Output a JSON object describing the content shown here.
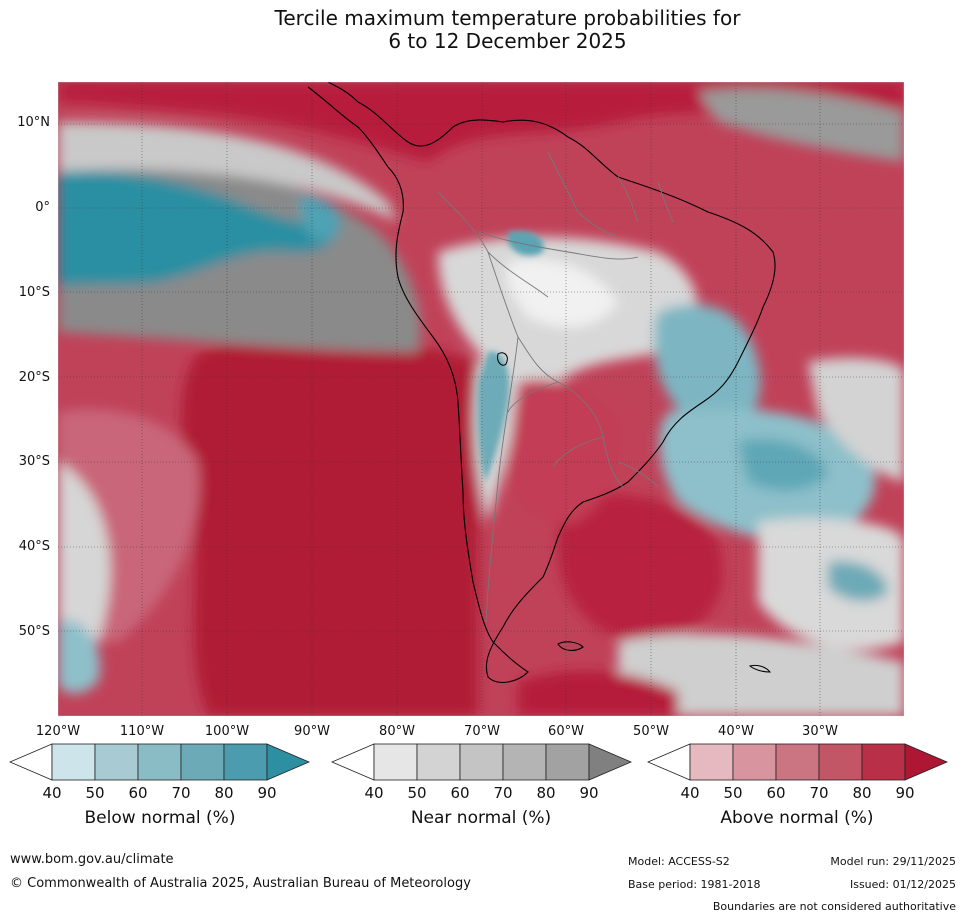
{
  "title": {
    "line1": "Tercile maximum temperature probabilities for",
    "line2": "6 to 12 December 2025"
  },
  "map": {
    "region": "South America",
    "lat_labels": [
      "10°N",
      "0°",
      "10°S",
      "20°S",
      "30°S",
      "40°S",
      "50°S"
    ],
    "lon_labels": [
      "120°W",
      "110°W",
      "100°W",
      "90°W",
      "80°W",
      "70°W",
      "60°W",
      "50°W",
      "40°W",
      "30°W"
    ],
    "colors": {
      "above": "#b51a39",
      "below": "#2f93a7",
      "near": "#8a8a8a",
      "coast": "#000000",
      "borders": "#7a7a7a"
    }
  },
  "colorbars": [
    {
      "title": "Below normal (%)",
      "ticks": [
        "40",
        "50",
        "60",
        "70",
        "80",
        "90"
      ],
      "colors": [
        "#cde4ea",
        "#a7cad3",
        "#8abcc6",
        "#6daab7",
        "#4c9caf",
        "#2e8fa3"
      ]
    },
    {
      "title": "Near normal (%)",
      "ticks": [
        "40",
        "50",
        "60",
        "70",
        "80",
        "90"
      ],
      "colors": [
        "#e6e6e6",
        "#d3d3d3",
        "#c4c4c4",
        "#b4b4b4",
        "#a2a2a2",
        "#808080"
      ]
    },
    {
      "title": "Above normal (%)",
      "ticks": [
        "40",
        "50",
        "60",
        "70",
        "80",
        "90"
      ],
      "colors": [
        "#e6b8bf",
        "#d9959f",
        "#cb7482",
        "#c25666",
        "#b82f47",
        "#ad1734"
      ]
    }
  ],
  "footer": {
    "url": "www.bom.gov.au/climate",
    "copyright": "© Commonwealth of Australia 2025, Australian Bureau of Meteorology",
    "model": "Model: ACCESS-S2",
    "model_run": "Model run: 29/11/2025",
    "base_period": "Base period: 1981-2018",
    "issued": "Issued: 01/12/2025",
    "disclaimer": "Boundaries are not considered authoritative"
  }
}
